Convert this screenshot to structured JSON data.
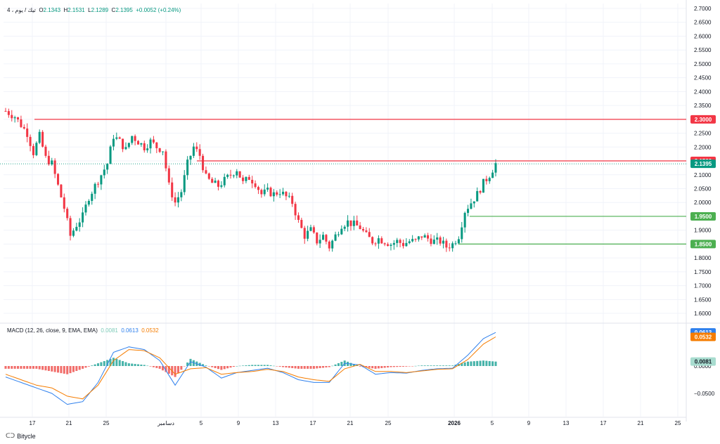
{
  "legend": {
    "symbol": "4 ، تيك / يوم",
    "open_label": "O",
    "open": "2.1343",
    "high_label": "H",
    "high": "2.1531",
    "low_label": "L",
    "low": "2.1289",
    "close_label": "C",
    "close": "2.1395",
    "change": "+0.0052 (+0.24%)"
  },
  "macd_legend": {
    "title": "MACD (12, 26, close, 9, EMA, EMA)",
    "hist": "0.0081",
    "macd": "0.0613",
    "signal": "0.0532"
  },
  "brand": {
    "logo": "ᑕᑐ",
    "name": "Bitycle"
  },
  "colors": {
    "up": "#089981",
    "down": "#f23645",
    "resistance": "#f23645",
    "support": "#4caf50",
    "macd": "#2f80ed",
    "signal": "#f57c00",
    "hist_up": "#26a69a",
    "hist_down": "#ef5350"
  },
  "chart_data": {
    "type": "candlestick",
    "price_axis": {
      "ylim": [
        1.575,
        2.72
      ],
      "ticks": [
        "2.7000",
        "2.6500",
        "2.6000",
        "2.5500",
        "2.5000",
        "2.4500",
        "2.4000",
        "2.3500",
        "2.3000",
        "2.2500",
        "2.2000",
        "2.1500",
        "2.1000",
        "2.0500",
        "2.0000",
        "1.9500",
        "1.9000",
        "1.8500",
        "1.8000",
        "1.7500",
        "1.7000",
        "1.6500",
        "1.6000"
      ]
    },
    "macd_axis": {
      "ylim": [
        -0.095,
        0.085
      ],
      "ticks": [
        "0.0000",
        "−0.0500"
      ]
    },
    "x_ticks": [
      "17",
      "21",
      "25",
      "دسامبر",
      "5",
      "9",
      "13",
      "17",
      "21",
      "25",
      "2026",
      "5",
      "9",
      "13",
      "17",
      "21",
      "25"
    ],
    "levels": [
      {
        "label": "2.3000",
        "value": 2.3,
        "kind": "resistance"
      },
      {
        "label": "2.1500",
        "value": 2.15,
        "kind": "resistance"
      },
      {
        "label": "1.9500",
        "value": 1.95,
        "kind": "support"
      },
      {
        "label": "1.8500",
        "value": 1.85,
        "kind": "support"
      }
    ],
    "last_price": {
      "label": "2.1395",
      "value": 2.1395
    },
    "macd_labels": [
      {
        "label": "0.0613",
        "value": 0.0613,
        "kind": "macd"
      },
      {
        "label": "0.0532",
        "value": 0.0532,
        "kind": "signal"
      },
      {
        "label": "0.0081",
        "value": 0.0081,
        "kind": "hist"
      }
    ],
    "price_path": [
      [
        0,
        2.33
      ],
      [
        3,
        2.31
      ],
      [
        5,
        2.28
      ],
      [
        7,
        2.25
      ],
      [
        9,
        2.18
      ],
      [
        11,
        2.24
      ],
      [
        13,
        2.16
      ],
      [
        15,
        2.14
      ],
      [
        17,
        2.06
      ],
      [
        19,
        1.98
      ],
      [
        21,
        1.88
      ],
      [
        23,
        1.92
      ],
      [
        25,
        1.95
      ],
      [
        27,
        2.02
      ],
      [
        29,
        2.06
      ],
      [
        31,
        2.1
      ],
      [
        33,
        2.14
      ],
      [
        35,
        2.24
      ],
      [
        37,
        2.22
      ],
      [
        39,
        2.19
      ],
      [
        41,
        2.24
      ],
      [
        43,
        2.22
      ],
      [
        45,
        2.2
      ],
      [
        47,
        2.22
      ],
      [
        49,
        2.2
      ],
      [
        51,
        2.19
      ],
      [
        53,
        2.06
      ],
      [
        55,
        2.0
      ],
      [
        57,
        2.04
      ],
      [
        59,
        2.14
      ],
      [
        61,
        2.2
      ],
      [
        63,
        2.17
      ],
      [
        65,
        2.09
      ],
      [
        67,
        2.07
      ],
      [
        69,
        2.06
      ],
      [
        71,
        2.08
      ],
      [
        73,
        2.1
      ],
      [
        75,
        2.12
      ],
      [
        77,
        2.07
      ],
      [
        79,
        2.09
      ],
      [
        81,
        2.07
      ],
      [
        83,
        2.03
      ],
      [
        85,
        2.04
      ],
      [
        87,
        2.03
      ],
      [
        89,
        2.04
      ],
      [
        91,
        2.02
      ],
      [
        93,
        2.0
      ],
      [
        95,
        1.93
      ],
      [
        97,
        1.88
      ],
      [
        99,
        1.9
      ],
      [
        101,
        1.86
      ],
      [
        103,
        1.88
      ],
      [
        105,
        1.84
      ],
      [
        107,
        1.88
      ],
      [
        109,
        1.92
      ],
      [
        111,
        1.93
      ],
      [
        113,
        1.92
      ],
      [
        115,
        1.91
      ],
      [
        117,
        1.88
      ],
      [
        119,
        1.86
      ],
      [
        121,
        1.87
      ],
      [
        123,
        1.86
      ],
      [
        125,
        1.85
      ],
      [
        127,
        1.86
      ],
      [
        129,
        1.85
      ],
      [
        131,
        1.86
      ],
      [
        133,
        1.86
      ],
      [
        135,
        1.88
      ],
      [
        137,
        1.87
      ],
      [
        139,
        1.86
      ],
      [
        141,
        1.86
      ],
      [
        143,
        1.84
      ],
      [
        145,
        1.85
      ],
      [
        147,
        1.88
      ],
      [
        149,
        1.97
      ],
      [
        151,
        2.0
      ],
      [
        153,
        2.03
      ],
      [
        155,
        2.07
      ],
      [
        157,
        2.1
      ],
      [
        159,
        2.14
      ]
    ],
    "macd_path": [
      [
        0,
        -0.02
      ],
      [
        5,
        -0.03
      ],
      [
        10,
        -0.04
      ],
      [
        15,
        -0.05
      ],
      [
        20,
        -0.07
      ],
      [
        25,
        -0.065
      ],
      [
        30,
        -0.03
      ],
      [
        35,
        0.025
      ],
      [
        40,
        0.035
      ],
      [
        45,
        0.03
      ],
      [
        50,
        0.01
      ],
      [
        55,
        -0.035
      ],
      [
        60,
        0.008
      ],
      [
        65,
        -0.002
      ],
      [
        70,
        -0.022
      ],
      [
        75,
        -0.012
      ],
      [
        80,
        -0.008
      ],
      [
        85,
        -0.004
      ],
      [
        90,
        -0.012
      ],
      [
        95,
        -0.025
      ],
      [
        100,
        -0.03
      ],
      [
        105,
        -0.03
      ],
      [
        110,
        0.005
      ],
      [
        115,
        0.002
      ],
      [
        120,
        -0.015
      ],
      [
        125,
        -0.012
      ],
      [
        130,
        -0.013
      ],
      [
        135,
        -0.008
      ],
      [
        140,
        -0.005
      ],
      [
        145,
        -0.004
      ],
      [
        150,
        0.02
      ],
      [
        155,
        0.05
      ],
      [
        159,
        0.0613
      ]
    ],
    "signal_path": [
      [
        0,
        -0.015
      ],
      [
        5,
        -0.025
      ],
      [
        10,
        -0.035
      ],
      [
        15,
        -0.04
      ],
      [
        20,
        -0.055
      ],
      [
        25,
        -0.06
      ],
      [
        30,
        -0.035
      ],
      [
        35,
        0.01
      ],
      [
        40,
        0.03
      ],
      [
        45,
        0.028
      ],
      [
        50,
        0.015
      ],
      [
        55,
        -0.015
      ],
      [
        60,
        -0.005
      ],
      [
        65,
        -0.003
      ],
      [
        70,
        -0.015
      ],
      [
        75,
        -0.012
      ],
      [
        80,
        -0.01
      ],
      [
        85,
        -0.006
      ],
      [
        90,
        -0.01
      ],
      [
        95,
        -0.02
      ],
      [
        100,
        -0.025
      ],
      [
        105,
        -0.028
      ],
      [
        110,
        -0.005
      ],
      [
        115,
        0.003
      ],
      [
        120,
        -0.01
      ],
      [
        125,
        -0.01
      ],
      [
        130,
        -0.012
      ],
      [
        135,
        -0.009
      ],
      [
        140,
        -0.006
      ],
      [
        145,
        -0.005
      ],
      [
        150,
        0.012
      ],
      [
        155,
        0.04
      ],
      [
        159,
        0.0532
      ]
    ]
  }
}
